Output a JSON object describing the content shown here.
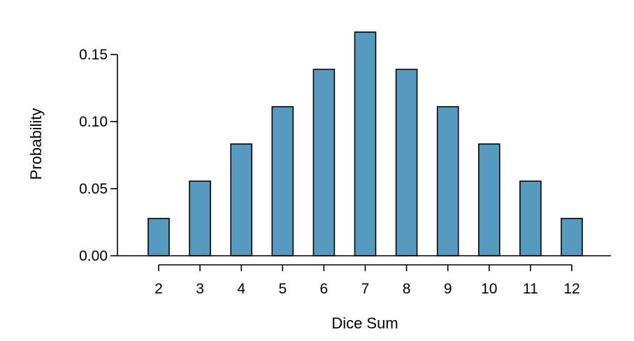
{
  "chart_data": {
    "type": "bar",
    "title": "",
    "xlabel": "Dice Sum",
    "ylabel": "Probability",
    "categories": [
      "2",
      "3",
      "4",
      "5",
      "6",
      "7",
      "8",
      "9",
      "10",
      "11",
      "12"
    ],
    "values": [
      0.0278,
      0.0556,
      0.0833,
      0.1111,
      0.1389,
      0.1667,
      0.1389,
      0.1111,
      0.0833,
      0.0556,
      0.0278
    ],
    "ylim": [
      0,
      0.17
    ],
    "yticks": [
      "0.00",
      "0.05",
      "0.10",
      "0.15"
    ],
    "grid": false,
    "bar_color": "#569bbf"
  }
}
